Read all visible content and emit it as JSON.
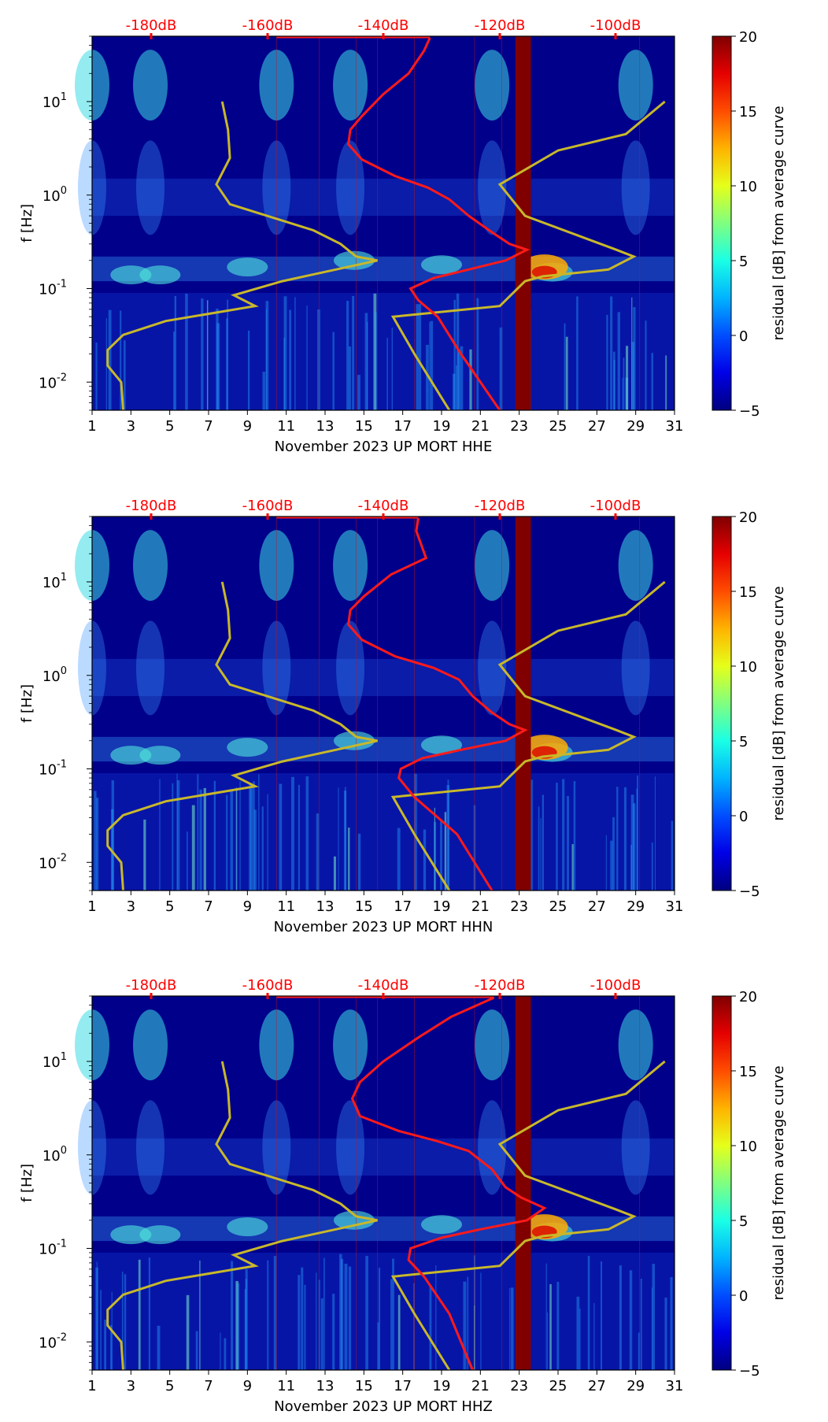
{
  "colors": {
    "db_scale": "#ff0000",
    "noise_model": "#c8b82a",
    "median_curve": "#ff1a1a",
    "background_low": "#00008b"
  },
  "chart_data": [
    {
      "type": "heatmap",
      "panel": "HHE",
      "xlabel": "November 2023 UP MORT  HHE",
      "ylabel": "f [Hz]",
      "x_ticks": [
        "1",
        "3",
        "5",
        "7",
        "9",
        "11",
        "13",
        "15",
        "17",
        "19",
        "21",
        "23",
        "25",
        "27",
        "29",
        "31"
      ],
      "x_range": [
        1,
        31
      ],
      "y_ticks": [
        {
          "label": "10^-2",
          "value": 0.01
        },
        {
          "label": "10^-1",
          "value": 0.1
        },
        {
          "label": "10^0",
          "value": 1
        },
        {
          "label": "10^1",
          "value": 10
        }
      ],
      "y_range": [
        0.005,
        50
      ],
      "top_axis_labels": [
        "-180dB",
        "-160dB",
        "-140dB",
        "-120dB",
        "-100dB"
      ],
      "colorbar": {
        "label": "residual [dB] from average curve",
        "range": [
          -5,
          20
        ],
        "ticks": [
          "20",
          "15",
          "10",
          "5",
          "0",
          "−5"
        ]
      },
      "saturated_column": [
        22.8,
        23.6
      ],
      "model_curve": [
        [
          7.7,
          10
        ],
        [
          8,
          5
        ],
        [
          8.1,
          2.5
        ],
        [
          7.4,
          1.3
        ],
        [
          8.1,
          0.8
        ],
        [
          12.4,
          0.42
        ],
        [
          13.8,
          0.3
        ],
        [
          14.6,
          0.22
        ],
        [
          15.7,
          0.2
        ],
        [
          10.8,
          0.12
        ],
        [
          8.3,
          0.085
        ],
        [
          9.4,
          0.065
        ],
        [
          4.8,
          0.045
        ],
        [
          2.6,
          0.032
        ],
        [
          1.8,
          0.022
        ],
        [
          1.8,
          0.015
        ],
        [
          2.5,
          0.01
        ],
        [
          2.6,
          0.005
        ]
      ],
      "model_curve_right": [
        [
          19.4,
          0.005
        ],
        [
          17.6,
          0.02
        ],
        [
          16.5,
          0.05
        ],
        [
          22.0,
          0.065
        ],
        [
          23.3,
          0.12
        ],
        [
          24.2,
          0.135
        ],
        [
          27.6,
          0.16
        ],
        [
          28.9,
          0.22
        ],
        [
          28.0,
          0.26
        ],
        [
          23.3,
          0.6
        ],
        [
          22.0,
          1.3
        ],
        [
          25.0,
          3
        ],
        [
          28.5,
          4.5
        ],
        [
          30.5,
          10
        ]
      ],
      "average_curve": [
        [
          18.4,
          48
        ],
        [
          18.1,
          35
        ],
        [
          17.3,
          20
        ],
        [
          16.0,
          12
        ],
        [
          14.9,
          7
        ],
        [
          14.3,
          5
        ],
        [
          14.2,
          3.5
        ],
        [
          14.9,
          2.4
        ],
        [
          16.6,
          1.6
        ],
        [
          18.3,
          1.2
        ],
        [
          19.4,
          0.9
        ],
        [
          20.4,
          0.6
        ],
        [
          21.6,
          0.4
        ],
        [
          22.5,
          0.3
        ],
        [
          23.4,
          0.26
        ],
        [
          22.3,
          0.2
        ],
        [
          20.4,
          0.16
        ],
        [
          18.6,
          0.13
        ],
        [
          17.4,
          0.1
        ],
        [
          17.8,
          0.075
        ],
        [
          18.8,
          0.05
        ],
        [
          20.0,
          0.02
        ],
        [
          22.0,
          0.005
        ]
      ]
    },
    {
      "type": "heatmap",
      "panel": "HHN",
      "xlabel": "November 2023 UP MORT  HHN",
      "ylabel": "f [Hz]",
      "x_ticks": [
        "1",
        "3",
        "5",
        "7",
        "9",
        "11",
        "13",
        "15",
        "17",
        "19",
        "21",
        "23",
        "25",
        "27",
        "29",
        "31"
      ],
      "x_range": [
        1,
        31
      ],
      "y_ticks": [
        {
          "label": "10^-2",
          "value": 0.01
        },
        {
          "label": "10^-1",
          "value": 0.1
        },
        {
          "label": "10^0",
          "value": 1
        },
        {
          "label": "10^1",
          "value": 10
        }
      ],
      "y_range": [
        0.005,
        50
      ],
      "top_axis_labels": [
        "-180dB",
        "-160dB",
        "-140dB",
        "-120dB",
        "-100dB"
      ],
      "colorbar": {
        "label": "residual [dB] from average curve",
        "range": [
          -5,
          20
        ],
        "ticks": [
          "20",
          "15",
          "10",
          "5",
          "0",
          "−5"
        ]
      },
      "saturated_column": [
        22.8,
        23.6
      ],
      "model_curve": [
        [
          7.7,
          10
        ],
        [
          8,
          5
        ],
        [
          8.1,
          2.5
        ],
        [
          7.4,
          1.3
        ],
        [
          8.1,
          0.8
        ],
        [
          12.4,
          0.42
        ],
        [
          13.8,
          0.3
        ],
        [
          14.6,
          0.22
        ],
        [
          15.7,
          0.2
        ],
        [
          10.8,
          0.12
        ],
        [
          8.3,
          0.085
        ],
        [
          9.4,
          0.065
        ],
        [
          4.8,
          0.045
        ],
        [
          2.6,
          0.032
        ],
        [
          1.8,
          0.022
        ],
        [
          1.8,
          0.015
        ],
        [
          2.5,
          0.01
        ],
        [
          2.6,
          0.005
        ]
      ],
      "model_curve_right": [
        [
          19.4,
          0.005
        ],
        [
          17.6,
          0.02
        ],
        [
          16.5,
          0.05
        ],
        [
          22.0,
          0.065
        ],
        [
          23.3,
          0.12
        ],
        [
          24.2,
          0.135
        ],
        [
          27.6,
          0.16
        ],
        [
          28.9,
          0.22
        ],
        [
          28.0,
          0.26
        ],
        [
          23.3,
          0.6
        ],
        [
          22.0,
          1.3
        ],
        [
          25.0,
          3
        ],
        [
          28.5,
          4.5
        ],
        [
          30.5,
          10
        ]
      ],
      "average_curve": [
        [
          17.8,
          48
        ],
        [
          17.7,
          35
        ],
        [
          18.2,
          18
        ],
        [
          16.4,
          12
        ],
        [
          15.0,
          7
        ],
        [
          14.3,
          5
        ],
        [
          14.2,
          3.5
        ],
        [
          14.9,
          2.4
        ],
        [
          16.6,
          1.6
        ],
        [
          18.6,
          1.2
        ],
        [
          19.9,
          0.9
        ],
        [
          20.6,
          0.6
        ],
        [
          21.6,
          0.4
        ],
        [
          22.5,
          0.3
        ],
        [
          23.3,
          0.26
        ],
        [
          22.3,
          0.2
        ],
        [
          20.0,
          0.16
        ],
        [
          18.0,
          0.13
        ],
        [
          16.9,
          0.1
        ],
        [
          16.8,
          0.08
        ],
        [
          17.6,
          0.05
        ],
        [
          19.8,
          0.02
        ],
        [
          21.6,
          0.005
        ]
      ]
    },
    {
      "type": "heatmap",
      "panel": "HHZ",
      "xlabel": "November 2023 UP MORT  HHZ",
      "ylabel": "f [Hz]",
      "x_ticks": [
        "1",
        "3",
        "5",
        "7",
        "9",
        "11",
        "13",
        "15",
        "17",
        "19",
        "21",
        "23",
        "25",
        "27",
        "29",
        "31"
      ],
      "x_range": [
        1,
        31
      ],
      "y_ticks": [
        {
          "label": "10^-2",
          "value": 0.01
        },
        {
          "label": "10^-1",
          "value": 0.1
        },
        {
          "label": "10^0",
          "value": 1
        },
        {
          "label": "10^1",
          "value": 10
        }
      ],
      "y_range": [
        0.005,
        50
      ],
      "top_axis_labels": [
        "-180dB",
        "-160dB",
        "-140dB",
        "-120dB",
        "-100dB"
      ],
      "colorbar": {
        "label": "residual [dB] from average curve",
        "range": [
          -5,
          20
        ],
        "ticks": [
          "20",
          "15",
          "10",
          "5",
          "0",
          "−5"
        ]
      },
      "saturated_column": [
        22.8,
        23.6
      ],
      "model_curve": [
        [
          7.7,
          10
        ],
        [
          8,
          5
        ],
        [
          8.1,
          2.5
        ],
        [
          7.4,
          1.3
        ],
        [
          8.1,
          0.8
        ],
        [
          12.4,
          0.42
        ],
        [
          13.8,
          0.3
        ],
        [
          14.6,
          0.22
        ],
        [
          15.7,
          0.2
        ],
        [
          10.8,
          0.12
        ],
        [
          8.3,
          0.085
        ],
        [
          9.4,
          0.065
        ],
        [
          4.8,
          0.045
        ],
        [
          2.6,
          0.032
        ],
        [
          1.8,
          0.022
        ],
        [
          1.8,
          0.015
        ],
        [
          2.5,
          0.01
        ],
        [
          2.6,
          0.005
        ]
      ],
      "model_curve_right": [
        [
          19.4,
          0.005
        ],
        [
          17.6,
          0.02
        ],
        [
          16.5,
          0.05
        ],
        [
          22.0,
          0.065
        ],
        [
          23.3,
          0.12
        ],
        [
          24.2,
          0.135
        ],
        [
          27.6,
          0.16
        ],
        [
          28.9,
          0.22
        ],
        [
          28.0,
          0.26
        ],
        [
          23.3,
          0.6
        ],
        [
          22.0,
          1.3
        ],
        [
          25.0,
          3
        ],
        [
          28.5,
          4.5
        ],
        [
          30.5,
          10
        ]
      ],
      "average_curve": [
        [
          21.7,
          48
        ],
        [
          19.5,
          30
        ],
        [
          17.8,
          18
        ],
        [
          16.0,
          10
        ],
        [
          14.8,
          6
        ],
        [
          14.4,
          4
        ],
        [
          14.8,
          2.6
        ],
        [
          16.8,
          1.8
        ],
        [
          18.8,
          1.4
        ],
        [
          20.4,
          1.1
        ],
        [
          21.6,
          0.7
        ],
        [
          22.3,
          0.45
        ],
        [
          23.1,
          0.35
        ],
        [
          24.3,
          0.27
        ],
        [
          23.4,
          0.2
        ],
        [
          21.0,
          0.16
        ],
        [
          19.0,
          0.13
        ],
        [
          17.4,
          0.1
        ],
        [
          17.3,
          0.075
        ],
        [
          18.1,
          0.05
        ],
        [
          19.4,
          0.02
        ],
        [
          20.6,
          0.005
        ]
      ]
    }
  ]
}
